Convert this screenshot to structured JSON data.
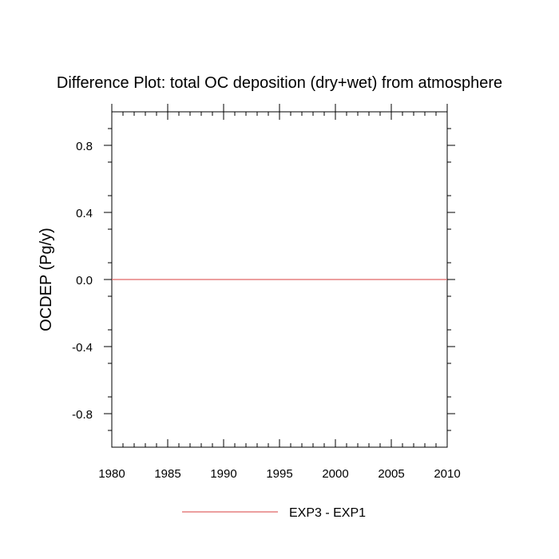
{
  "chart_data": {
    "type": "line",
    "title": "Difference Plot: total OC deposition (dry+wet) from atmosphere",
    "xlabel": "",
    "ylabel": "OCDEP  (Pg/y)",
    "xlim": [
      1980,
      2010
    ],
    "ylim": [
      -1.0,
      1.0
    ],
    "x_ticks": [
      1980,
      1985,
      1990,
      1995,
      2000,
      2005,
      2010
    ],
    "x_tick_labels": [
      "1980",
      "1985",
      "1990",
      "1995",
      "2000",
      "2005",
      "2010"
    ],
    "y_ticks": [
      0.8,
      0.4,
      0.0,
      -0.4,
      -0.8
    ],
    "y_tick_labels": [
      "0.8",
      "0.4",
      "0.0",
      "-0.4",
      "-0.8"
    ],
    "grid": false,
    "legend_position": "bottom-center",
    "series": [
      {
        "name": "EXP3 - EXP1",
        "color": "#e06666",
        "x": [
          1980,
          1985,
          1990,
          1995,
          2000,
          2005,
          2010
        ],
        "y": [
          0,
          0,
          0,
          0,
          0,
          0,
          0
        ]
      }
    ]
  }
}
